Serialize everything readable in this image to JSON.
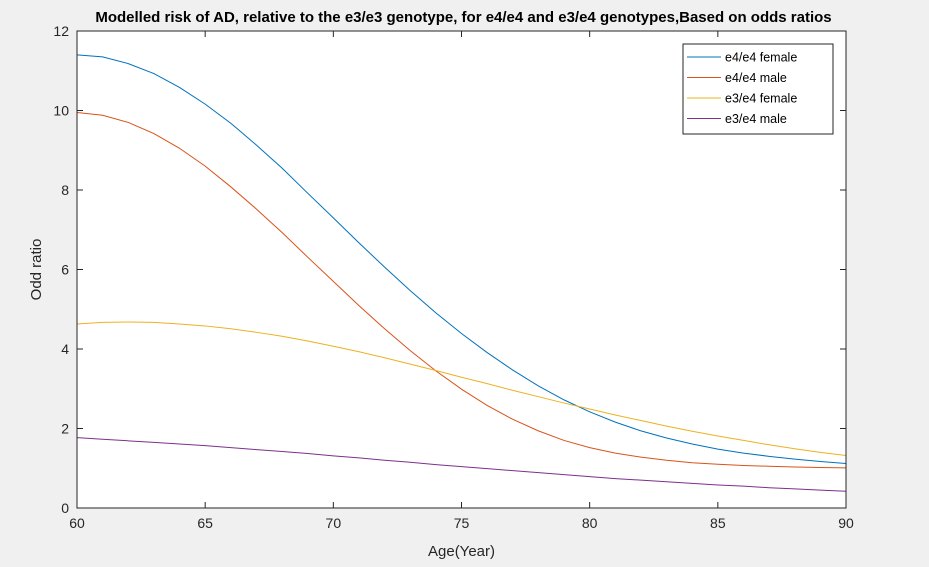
{
  "chart_data": {
    "type": "line",
    "title": "Modelled risk of AD, relative to the e3/e3 genotype, for e4/e4 and e3/e4 genotypes,Based on odds ratios",
    "xlabel": "Age(Year)",
    "ylabel": "Odd ratio",
    "xlim": [
      60,
      90
    ],
    "ylim": [
      0,
      12
    ],
    "xticks": [
      60,
      65,
      70,
      75,
      80,
      85,
      90
    ],
    "yticks": [
      0,
      2,
      4,
      6,
      8,
      10,
      12
    ],
    "grid": false,
    "legend_position": "top-right",
    "x": [
      60,
      61,
      62,
      63,
      64,
      65,
      66,
      67,
      68,
      69,
      70,
      71,
      72,
      73,
      74,
      75,
      76,
      77,
      78,
      79,
      80,
      81,
      82,
      83,
      84,
      85,
      86,
      87,
      88,
      89,
      90
    ],
    "series": [
      {
        "name": "e4/e4 female",
        "color": "#0072bd",
        "values": [
          11.4,
          11.35,
          11.18,
          10.93,
          10.58,
          10.16,
          9.68,
          9.13,
          8.55,
          7.92,
          7.3,
          6.67,
          6.06,
          5.47,
          4.91,
          4.39,
          3.91,
          3.47,
          3.07,
          2.72,
          2.42,
          2.16,
          1.94,
          1.76,
          1.61,
          1.48,
          1.38,
          1.3,
          1.23,
          1.17,
          1.12
        ]
      },
      {
        "name": "e4/e4 male",
        "color": "#d95319",
        "values": [
          9.95,
          9.88,
          9.7,
          9.42,
          9.05,
          8.6,
          8.08,
          7.52,
          6.93,
          6.31,
          5.7,
          5.09,
          4.51,
          3.96,
          3.45,
          2.99,
          2.58,
          2.23,
          1.94,
          1.7,
          1.52,
          1.38,
          1.28,
          1.2,
          1.14,
          1.1,
          1.07,
          1.05,
          1.03,
          1.02,
          1.01
        ]
      },
      {
        "name": "e3/e4 female",
        "color": "#edb120",
        "values": [
          4.63,
          4.67,
          4.68,
          4.67,
          4.63,
          4.58,
          4.51,
          4.42,
          4.32,
          4.2,
          4.07,
          3.93,
          3.78,
          3.62,
          3.46,
          3.29,
          3.13,
          2.96,
          2.8,
          2.64,
          2.49,
          2.34,
          2.2,
          2.06,
          1.93,
          1.81,
          1.7,
          1.59,
          1.49,
          1.4,
          1.32
        ]
      },
      {
        "name": "e3/e4 male",
        "color": "#7e2f8e",
        "values": [
          1.77,
          1.73,
          1.69,
          1.65,
          1.61,
          1.57,
          1.52,
          1.47,
          1.42,
          1.37,
          1.31,
          1.26,
          1.2,
          1.15,
          1.09,
          1.04,
          0.99,
          0.94,
          0.89,
          0.84,
          0.79,
          0.74,
          0.7,
          0.66,
          0.62,
          0.58,
          0.55,
          0.51,
          0.48,
          0.45,
          0.42
        ]
      }
    ]
  }
}
